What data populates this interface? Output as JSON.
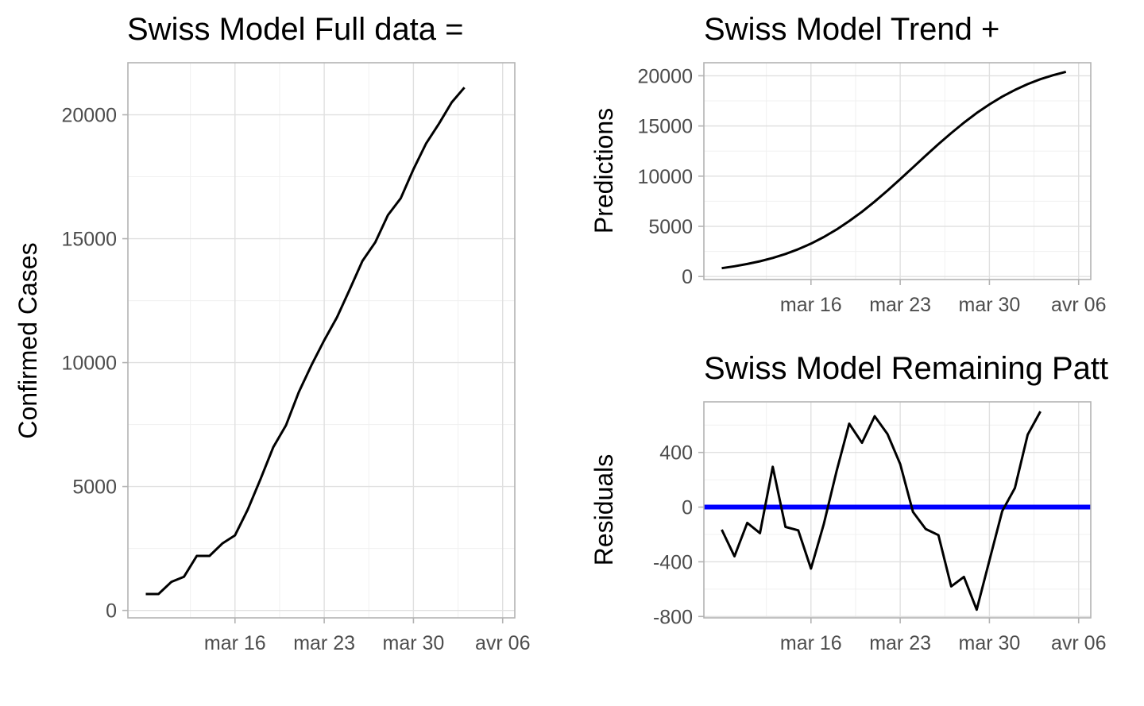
{
  "chart_data": [
    {
      "type": "line",
      "title": "Swiss Model Full data =",
      "xlabel": "",
      "ylabel": "Confirmed Cases",
      "x_ticks": [
        "mar 16",
        "mar 23",
        "mar 30",
        "avr 06"
      ],
      "y_ticks": [
        "0",
        "5000",
        "10000",
        "15000",
        "20000"
      ],
      "xlim": [
        "2020-03-08",
        "2020-04-06"
      ],
      "ylim": [
        -300,
        22100
      ],
      "grid": true,
      "series": [
        {
          "color": "#000000",
          "x": [
            "2020-03-09",
            "2020-03-10",
            "2020-03-11",
            "2020-03-12",
            "2020-03-13",
            "2020-03-14",
            "2020-03-15",
            "2020-03-16",
            "2020-03-17",
            "2020-03-18",
            "2020-03-19",
            "2020-03-20",
            "2020-03-21",
            "2020-03-22",
            "2020-03-23",
            "2020-03-24",
            "2020-03-25",
            "2020-03-26",
            "2020-03-27",
            "2020-03-28",
            "2020-03-29",
            "2020-03-30",
            "2020-03-31",
            "2020-04-01",
            "2020-04-02",
            "2020-04-03",
            "2020-04-04",
            "2020-04-05"
          ],
          "y": [
            660,
            660,
            1150,
            1360,
            2200,
            2200,
            2700,
            3030,
            4070,
            5300,
            6580,
            7470,
            8800,
            9900,
            10900,
            11830,
            12950,
            14100,
            14850,
            15950,
            16630,
            17800,
            18850,
            19640,
            20500,
            21100,
            null,
            null
          ]
        }
      ]
    },
    {
      "type": "line",
      "title": "Swiss Model Trend +",
      "xlabel": "",
      "ylabel": "Predictions",
      "x_ticks": [
        "mar 16",
        "mar 23",
        "mar 30",
        "avr 06"
      ],
      "y_ticks": [
        "0",
        "5000",
        "10000",
        "15000",
        "20000"
      ],
      "xlim": [
        "2020-03-08",
        "2020-04-06"
      ],
      "ylim": [
        -300,
        21300
      ],
      "grid": true,
      "series": [
        {
          "color": "#000000",
          "x": [
            "2020-03-09",
            "2020-03-10",
            "2020-03-11",
            "2020-03-12",
            "2020-03-13",
            "2020-03-14",
            "2020-03-15",
            "2020-03-16",
            "2020-03-17",
            "2020-03-18",
            "2020-03-19",
            "2020-03-20",
            "2020-03-21",
            "2020-03-22",
            "2020-03-23",
            "2020-03-24",
            "2020-03-25",
            "2020-03-26",
            "2020-03-27",
            "2020-03-28",
            "2020-03-29",
            "2020-03-30",
            "2020-03-31",
            "2020-04-01",
            "2020-04-02",
            "2020-04-03",
            "2020-04-04",
            "2020-04-05"
          ],
          "y": [
            830,
            1020,
            1250,
            1520,
            1850,
            2250,
            2720,
            3280,
            3930,
            4680,
            5520,
            6450,
            7470,
            8560,
            9700,
            10870,
            12040,
            13190,
            14290,
            15330,
            16290,
            17150,
            17920,
            18590,
            19170,
            19660,
            20060,
            20400
          ]
        }
      ]
    },
    {
      "type": "line",
      "title": "Swiss Model Remaining Patt",
      "xlabel": "",
      "ylabel": "Residuals",
      "x_ticks": [
        "mar 16",
        "mar 23",
        "mar 30",
        "avr 06"
      ],
      "y_ticks": [
        "-800",
        "-400",
        "0",
        "400"
      ],
      "xlim": [
        "2020-03-08",
        "2020-04-06"
      ],
      "ylim": [
        -810,
        770
      ],
      "grid": true,
      "hline": {
        "y": 0,
        "color": "#0000ff"
      },
      "series": [
        {
          "color": "#000000",
          "x": [
            "2020-03-09",
            "2020-03-10",
            "2020-03-11",
            "2020-03-12",
            "2020-03-13",
            "2020-03-14",
            "2020-03-15",
            "2020-03-16",
            "2020-03-17",
            "2020-03-18",
            "2020-03-19",
            "2020-03-20",
            "2020-03-21",
            "2020-03-22",
            "2020-03-23",
            "2020-03-24",
            "2020-03-25",
            "2020-03-26",
            "2020-03-27",
            "2020-03-28",
            "2020-03-29",
            "2020-03-30",
            "2020-03-31",
            "2020-04-01",
            "2020-04-02",
            "2020-04-03",
            "2020-04-04",
            "2020-04-05"
          ],
          "y": [
            -165,
            -360,
            -115,
            -190,
            295,
            -145,
            -170,
            -450,
            -125,
            260,
            610,
            470,
            665,
            535,
            315,
            -35,
            -160,
            -205,
            -580,
            -510,
            -750,
            -390,
            -30,
            140,
            530,
            700,
            null,
            null
          ]
        }
      ]
    }
  ]
}
